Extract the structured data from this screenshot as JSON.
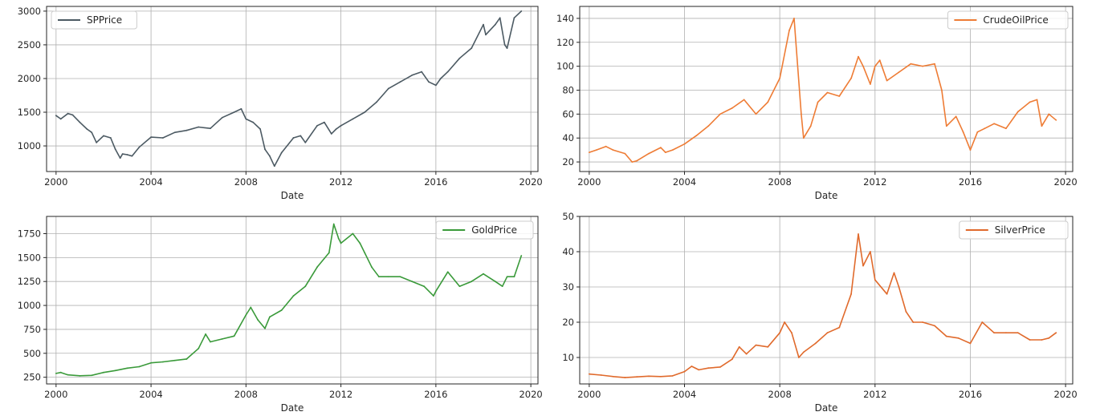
{
  "chart_data": [
    {
      "type": "line",
      "xlabel": "Date",
      "legend": "upper left",
      "grid": true,
      "xlim": [
        1999.6,
        2020.3
      ],
      "ylim": [
        620,
        3070
      ],
      "xticks": [
        2000,
        2004,
        2008,
        2012,
        2016,
        2020
      ],
      "xtick_labels": [
        "2000",
        "2004",
        "2008",
        "2012",
        "2016",
        "2020"
      ],
      "yticks": [
        1000,
        1500,
        2000,
        2500,
        3000
      ],
      "ytick_labels": [
        "1000",
        "1500",
        "2000",
        "2500",
        "3000"
      ],
      "series": [
        {
          "name": "SPPrice",
          "color": "#4c5a63",
          "x": [
            2000.0,
            2000.2,
            2000.5,
            2000.7,
            2001.0,
            2001.3,
            2001.5,
            2001.7,
            2002.0,
            2002.3,
            2002.5,
            2002.7,
            2002.8,
            2003.0,
            2003.2,
            2003.5,
            2004.0,
            2004.5,
            2005.0,
            2005.5,
            2006.0,
            2006.5,
            2007.0,
            2007.5,
            2007.8,
            2008.0,
            2008.3,
            2008.6,
            2008.8,
            2009.0,
            2009.2,
            2009.5,
            2010.0,
            2010.3,
            2010.5,
            2011.0,
            2011.3,
            2011.6,
            2011.8,
            2012.0,
            2012.5,
            2013.0,
            2013.5,
            2014.0,
            2014.5,
            2015.0,
            2015.4,
            2015.7,
            2016.0,
            2016.2,
            2016.5,
            2017.0,
            2017.5,
            2018.0,
            2018.1,
            2018.5,
            2018.7,
            2018.9,
            2019.0,
            2019.3,
            2019.6
          ],
          "y": [
            1450,
            1400,
            1480,
            1460,
            1350,
            1250,
            1200,
            1050,
            1150,
            1120,
            950,
            820,
            880,
            870,
            850,
            980,
            1130,
            1120,
            1200,
            1230,
            1280,
            1260,
            1420,
            1500,
            1550,
            1400,
            1350,
            1250,
            950,
            850,
            700,
            900,
            1120,
            1150,
            1050,
            1300,
            1350,
            1180,
            1250,
            1300,
            1400,
            1500,
            1650,
            1850,
            1950,
            2050,
            2100,
            1950,
            1900,
            2000,
            2100,
            2300,
            2450,
            2800,
            2650,
            2800,
            2900,
            2500,
            2450,
            2900,
            3000
          ]
        }
      ]
    },
    {
      "type": "line",
      "xlabel": "Date",
      "legend": "upper right",
      "grid": true,
      "xlim": [
        1999.6,
        2020.3
      ],
      "ylim": [
        12,
        150
      ],
      "xticks": [
        2000,
        2004,
        2008,
        2012,
        2016,
        2020
      ],
      "xtick_labels": [
        "2000",
        "2004",
        "2008",
        "2012",
        "2016",
        "2020"
      ],
      "yticks": [
        20,
        40,
        60,
        80,
        100,
        120,
        140
      ],
      "ytick_labels": [
        "20",
        "40",
        "60",
        "80",
        "100",
        "120",
        "140"
      ],
      "series": [
        {
          "name": "CrudeOilPrice",
          "color": "#ee7c35",
          "x": [
            2000.0,
            2000.3,
            2000.7,
            2001.0,
            2001.5,
            2001.8,
            2002.0,
            2002.5,
            2003.0,
            2003.2,
            2003.5,
            2004.0,
            2004.5,
            2005.0,
            2005.5,
            2006.0,
            2006.5,
            2007.0,
            2007.5,
            2008.0,
            2008.4,
            2008.6,
            2008.9,
            2009.0,
            2009.3,
            2009.6,
            2010.0,
            2010.5,
            2011.0,
            2011.3,
            2011.5,
            2011.8,
            2012.0,
            2012.2,
            2012.5,
            2013.0,
            2013.5,
            2014.0,
            2014.5,
            2014.8,
            2015.0,
            2015.4,
            2015.7,
            2016.0,
            2016.3,
            2016.6,
            2017.0,
            2017.5,
            2018.0,
            2018.5,
            2018.8,
            2019.0,
            2019.3,
            2019.6
          ],
          "y": [
            28,
            30,
            33,
            30,
            27,
            20,
            21,
            27,
            32,
            28,
            30,
            35,
            42,
            50,
            60,
            65,
            72,
            60,
            70,
            90,
            130,
            140,
            60,
            40,
            50,
            70,
            78,
            75,
            90,
            108,
            100,
            85,
            100,
            105,
            88,
            95,
            102,
            100,
            102,
            80,
            50,
            58,
            45,
            30,
            45,
            48,
            52,
            48,
            62,
            70,
            72,
            50,
            60,
            55
          ]
        }
      ]
    },
    {
      "type": "line",
      "xlabel": "Date",
      "legend": "upper right",
      "grid": true,
      "xlim": [
        1999.6,
        2020.3
      ],
      "ylim": [
        180,
        1930
      ],
      "xticks": [
        2000,
        2004,
        2008,
        2012,
        2016,
        2020
      ],
      "xtick_labels": [
        "2000",
        "2004",
        "2008",
        "2012",
        "2016",
        "2020"
      ],
      "yticks": [
        250,
        500,
        750,
        1000,
        1250,
        1500,
        1750
      ],
      "ytick_labels": [
        "250",
        "500",
        "750",
        "1000",
        "1250",
        "1500",
        "1750"
      ],
      "series": [
        {
          "name": "GoldPrice",
          "color": "#3a9a3a",
          "x": [
            2000.0,
            2000.2,
            2000.5,
            2001.0,
            2001.5,
            2002.0,
            2002.5,
            2003.0,
            2003.5,
            2004.0,
            2004.5,
            2005.0,
            2005.5,
            2006.0,
            2006.3,
            2006.5,
            2007.0,
            2007.5,
            2008.0,
            2008.2,
            2008.5,
            2008.8,
            2009.0,
            2009.5,
            2010.0,
            2010.5,
            2011.0,
            2011.5,
            2011.7,
            2011.9,
            2012.0,
            2012.5,
            2012.8,
            2013.0,
            2013.3,
            2013.6,
            2014.0,
            2014.5,
            2015.0,
            2015.5,
            2015.9,
            2016.0,
            2016.5,
            2017.0,
            2017.5,
            2018.0,
            2018.5,
            2018.8,
            2019.0,
            2019.3,
            2019.6
          ],
          "y": [
            290,
            300,
            275,
            265,
            270,
            300,
            320,
            345,
            360,
            400,
            410,
            425,
            440,
            550,
            700,
            620,
            650,
            680,
            900,
            980,
            850,
            760,
            880,
            950,
            1100,
            1200,
            1400,
            1550,
            1850,
            1700,
            1650,
            1750,
            1650,
            1550,
            1400,
            1300,
            1300,
            1300,
            1250,
            1200,
            1100,
            1150,
            1350,
            1200,
            1250,
            1330,
            1250,
            1200,
            1300,
            1300,
            1520
          ]
        }
      ]
    },
    {
      "type": "line",
      "xlabel": "Date",
      "legend": "upper right",
      "grid": true,
      "xlim": [
        1999.6,
        2020.3
      ],
      "ylim": [
        2.5,
        50
      ],
      "xticks": [
        2000,
        2004,
        2008,
        2012,
        2016,
        2020
      ],
      "xtick_labels": [
        "2000",
        "2004",
        "2008",
        "2012",
        "2016",
        "2020"
      ],
      "yticks": [
        10,
        20,
        30,
        40,
        50
      ],
      "ytick_labels": [
        "10",
        "20",
        "30",
        "40",
        "50"
      ],
      "series": [
        {
          "name": "SilverPrice",
          "color": "#e06a2c",
          "x": [
            2000.0,
            2000.5,
            2001.0,
            2001.5,
            2002.0,
            2002.5,
            2003.0,
            2003.5,
            2004.0,
            2004.3,
            2004.6,
            2005.0,
            2005.5,
            2006.0,
            2006.3,
            2006.6,
            2007.0,
            2007.5,
            2008.0,
            2008.2,
            2008.5,
            2008.8,
            2009.0,
            2009.5,
            2010.0,
            2010.5,
            2011.0,
            2011.3,
            2011.5,
            2011.8,
            2012.0,
            2012.5,
            2012.8,
            2013.0,
            2013.3,
            2013.6,
            2014.0,
            2014.5,
            2015.0,
            2015.5,
            2016.0,
            2016.5,
            2017.0,
            2017.5,
            2018.0,
            2018.5,
            2019.0,
            2019.3,
            2019.6
          ],
          "y": [
            5.3,
            5.0,
            4.6,
            4.3,
            4.5,
            4.7,
            4.6,
            4.8,
            6.0,
            7.5,
            6.5,
            7.0,
            7.3,
            9.5,
            13.0,
            11.0,
            13.5,
            13.0,
            17.0,
            20.0,
            17.0,
            10.0,
            11.5,
            14.0,
            17.0,
            18.5,
            28.0,
            45.0,
            36.0,
            40.0,
            32.0,
            28.0,
            34.0,
            30.0,
            23.0,
            20.0,
            20.0,
            19.0,
            16.0,
            15.5,
            14.0,
            20.0,
            17.0,
            17.0,
            17.0,
            15.0,
            15.0,
            15.5,
            17.0
          ]
        }
      ]
    }
  ]
}
